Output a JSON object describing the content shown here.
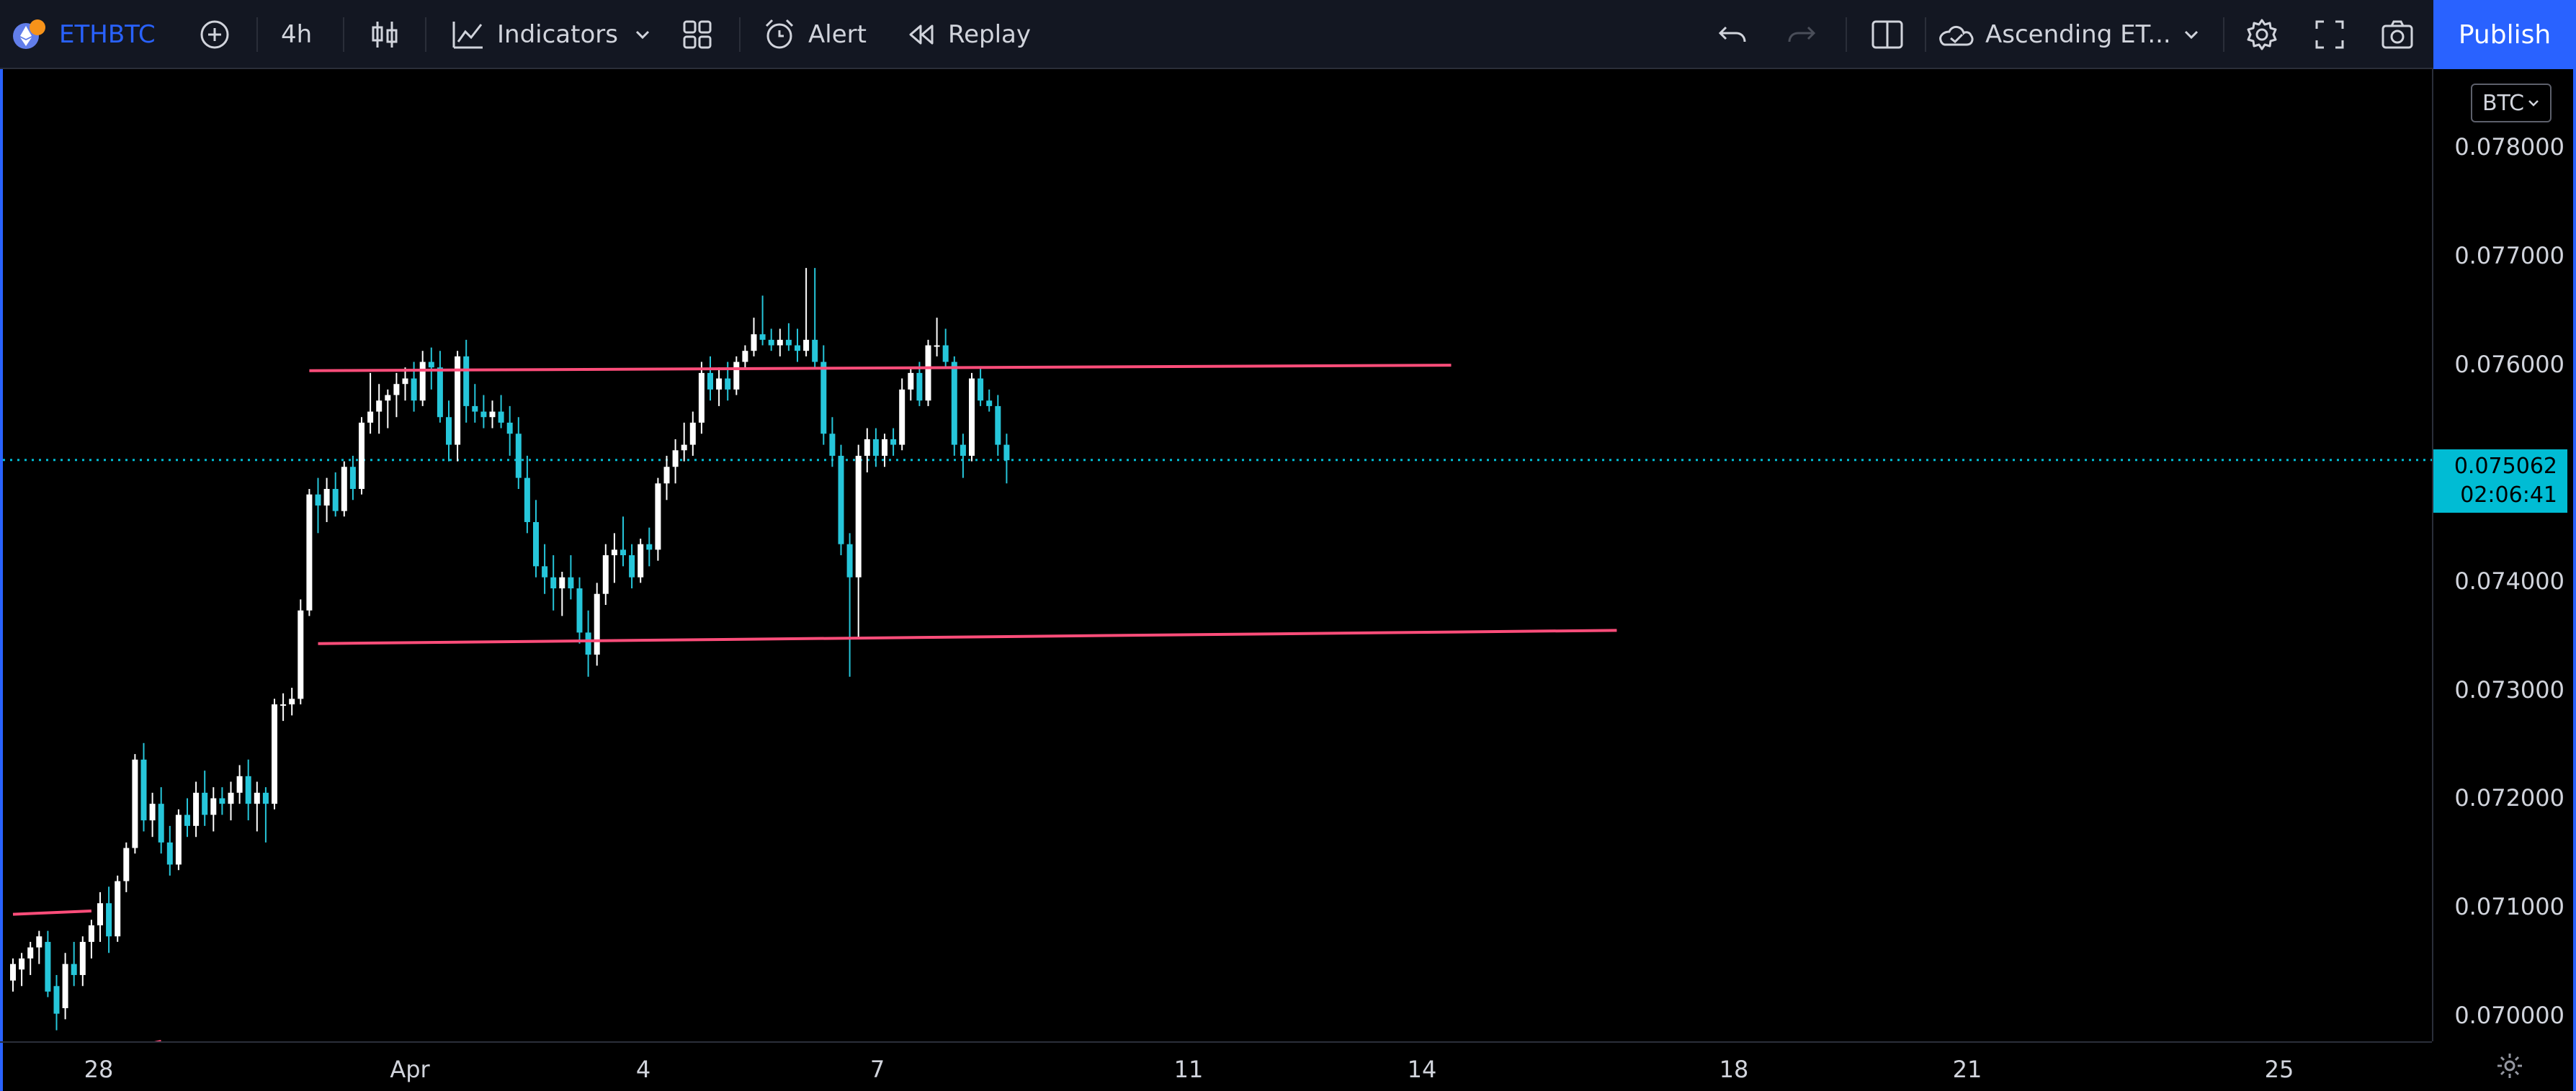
{
  "toolbar": {
    "symbol": "ETHBTC",
    "interval": "4h",
    "indicators_label": "Indicators",
    "alert_label": "Alert",
    "replay_label": "Replay",
    "layout_name": "Ascending ET...",
    "publish_label": "Publish"
  },
  "price_axis": {
    "currency": "BTC",
    "ticks": [
      "0.078000",
      "0.077000",
      "0.076000",
      "0.075062",
      "0.074000",
      "0.073000",
      "0.072000",
      "0.071000",
      "0.070000"
    ],
    "last_price": "0.075062",
    "countdown": "02:06:41"
  },
  "time_axis": {
    "labels": [
      "28",
      "Apr",
      "4",
      "7",
      "11",
      "14",
      "18",
      "21",
      "25"
    ]
  },
  "colors": {
    "up_candle": "#ffffff",
    "down_candle": "#26c6da",
    "trendline": "#ff4d7a",
    "last_price_line": "#00bcd4",
    "accent": "#2962ff"
  },
  "chart_data": {
    "type": "candlestick",
    "symbol": "ETHBTC",
    "interval": "4h",
    "y_range": [
      0.0698,
      0.0786
    ],
    "bars_ohlc": [
      [
        0.07035,
        0.07055,
        0.07025,
        0.0705
      ],
      [
        0.07045,
        0.0706,
        0.0703,
        0.07055
      ],
      [
        0.07055,
        0.0707,
        0.0704,
        0.07065
      ],
      [
        0.07065,
        0.0708,
        0.0705,
        0.07075
      ],
      [
        0.0707,
        0.0708,
        0.0702,
        0.07025
      ],
      [
        0.0703,
        0.0704,
        0.0699,
        0.07005
      ],
      [
        0.0701,
        0.0706,
        0.07,
        0.0705
      ],
      [
        0.0705,
        0.0707,
        0.0703,
        0.0704
      ],
      [
        0.0704,
        0.07075,
        0.0703,
        0.0707
      ],
      [
        0.0707,
        0.0709,
        0.07055,
        0.07085
      ],
      [
        0.07085,
        0.07115,
        0.0707,
        0.07105
      ],
      [
        0.07105,
        0.0712,
        0.0706,
        0.07075
      ],
      [
        0.07075,
        0.0713,
        0.0707,
        0.07125
      ],
      [
        0.07125,
        0.0716,
        0.07115,
        0.07155
      ],
      [
        0.07155,
        0.0724,
        0.0715,
        0.07235
      ],
      [
        0.07235,
        0.0725,
        0.0717,
        0.0718
      ],
      [
        0.0718,
        0.07205,
        0.07165,
        0.07195
      ],
      [
        0.07195,
        0.0721,
        0.0715,
        0.0716
      ],
      [
        0.0716,
        0.07175,
        0.0713,
        0.0714
      ],
      [
        0.0714,
        0.0719,
        0.07135,
        0.07185
      ],
      [
        0.07185,
        0.072,
        0.07165,
        0.07175
      ],
      [
        0.07175,
        0.07215,
        0.07165,
        0.07205
      ],
      [
        0.07205,
        0.07225,
        0.07175,
        0.07185
      ],
      [
        0.07185,
        0.0721,
        0.0717,
        0.072
      ],
      [
        0.072,
        0.0721,
        0.07185,
        0.07195
      ],
      [
        0.07195,
        0.07215,
        0.0718,
        0.07205
      ],
      [
        0.07205,
        0.0723,
        0.07195,
        0.0722
      ],
      [
        0.0722,
        0.07235,
        0.0718,
        0.07195
      ],
      [
        0.07195,
        0.07215,
        0.0717,
        0.07205
      ],
      [
        0.07205,
        0.0721,
        0.0716,
        0.07195
      ],
      [
        0.07195,
        0.0729,
        0.0719,
        0.07285
      ],
      [
        0.07285,
        0.07295,
        0.0727,
        0.07285
      ],
      [
        0.07285,
        0.073,
        0.07275,
        0.0729
      ],
      [
        0.0729,
        0.0738,
        0.07285,
        0.0737
      ],
      [
        0.0737,
        0.0748,
        0.07365,
        0.07475
      ],
      [
        0.07475,
        0.0749,
        0.0744,
        0.07465
      ],
      [
        0.07465,
        0.0749,
        0.0745,
        0.0748
      ],
      [
        0.0748,
        0.07495,
        0.07455,
        0.0746
      ],
      [
        0.0746,
        0.07505,
        0.07455,
        0.075
      ],
      [
        0.075,
        0.0751,
        0.0747,
        0.0748
      ],
      [
        0.0748,
        0.07545,
        0.07475,
        0.0754
      ],
      [
        0.0754,
        0.07585,
        0.0753,
        0.0755
      ],
      [
        0.0755,
        0.07575,
        0.0753,
        0.0756
      ],
      [
        0.0756,
        0.0757,
        0.07535,
        0.07565
      ],
      [
        0.07565,
        0.07585,
        0.07545,
        0.07575
      ],
      [
        0.07575,
        0.0759,
        0.0756,
        0.0758
      ],
      [
        0.0758,
        0.07595,
        0.0755,
        0.0756
      ],
      [
        0.0756,
        0.07605,
        0.07555,
        0.07595
      ],
      [
        0.07595,
        0.07608,
        0.0757,
        0.0759
      ],
      [
        0.0759,
        0.07605,
        0.0754,
        0.07545
      ],
      [
        0.07545,
        0.0756,
        0.07505,
        0.0752
      ],
      [
        0.0752,
        0.07605,
        0.07505,
        0.076
      ],
      [
        0.076,
        0.07615,
        0.0754,
        0.07555
      ],
      [
        0.07555,
        0.07575,
        0.0754,
        0.0755
      ],
      [
        0.0755,
        0.07565,
        0.07535,
        0.07545
      ],
      [
        0.07545,
        0.0756,
        0.07535,
        0.0755
      ],
      [
        0.0755,
        0.07565,
        0.07535,
        0.0754
      ],
      [
        0.0754,
        0.07555,
        0.0751,
        0.0753
      ],
      [
        0.0753,
        0.07545,
        0.0748,
        0.0749
      ],
      [
        0.0749,
        0.0751,
        0.0744,
        0.0745
      ],
      [
        0.0745,
        0.0747,
        0.074,
        0.0741
      ],
      [
        0.0741,
        0.0743,
        0.07385,
        0.074
      ],
      [
        0.074,
        0.0742,
        0.0737,
        0.0739
      ],
      [
        0.0739,
        0.07405,
        0.07365,
        0.074
      ],
      [
        0.074,
        0.0742,
        0.0738,
        0.0739
      ],
      [
        0.0739,
        0.074,
        0.0734,
        0.0735
      ],
      [
        0.0735,
        0.0737,
        0.0731,
        0.0733
      ],
      [
        0.0733,
        0.07395,
        0.0732,
        0.07385
      ],
      [
        0.07385,
        0.0743,
        0.07375,
        0.0742
      ],
      [
        0.0742,
        0.0744,
        0.07395,
        0.07425
      ],
      [
        0.07425,
        0.07455,
        0.0741,
        0.0742
      ],
      [
        0.0742,
        0.0743,
        0.0739,
        0.074
      ],
      [
        0.074,
        0.07435,
        0.07395,
        0.0743
      ],
      [
        0.0743,
        0.07445,
        0.0741,
        0.07425
      ],
      [
        0.07425,
        0.0749,
        0.07415,
        0.07485
      ],
      [
        0.07485,
        0.0751,
        0.0747,
        0.075
      ],
      [
        0.075,
        0.07525,
        0.07485,
        0.07515
      ],
      [
        0.07515,
        0.0754,
        0.07505,
        0.0752
      ],
      [
        0.0752,
        0.0755,
        0.0751,
        0.0754
      ],
      [
        0.0754,
        0.07595,
        0.0753,
        0.07585
      ],
      [
        0.07585,
        0.076,
        0.0756,
        0.0757
      ],
      [
        0.0757,
        0.0759,
        0.07555,
        0.0758
      ],
      [
        0.0758,
        0.07595,
        0.0756,
        0.0757
      ],
      [
        0.0757,
        0.076,
        0.07565,
        0.07595
      ],
      [
        0.07595,
        0.0761,
        0.0759,
        0.07605
      ],
      [
        0.07605,
        0.07635,
        0.076,
        0.0762
      ],
      [
        0.0762,
        0.07655,
        0.0761,
        0.07615
      ],
      [
        0.07615,
        0.07625,
        0.07605,
        0.0761
      ],
      [
        0.0761,
        0.07625,
        0.076,
        0.07615
      ],
      [
        0.07615,
        0.0763,
        0.07605,
        0.0761
      ],
      [
        0.0761,
        0.07625,
        0.07595,
        0.07605
      ],
      [
        0.07605,
        0.0768,
        0.076,
        0.07615
      ],
      [
        0.07615,
        0.0768,
        0.0759,
        0.07595
      ],
      [
        0.07595,
        0.0761,
        0.0752,
        0.0753
      ],
      [
        0.0753,
        0.07545,
        0.075,
        0.0751
      ],
      [
        0.0751,
        0.0752,
        0.0742,
        0.0743
      ],
      [
        0.0743,
        0.0744,
        0.0731,
        0.074
      ],
      [
        0.074,
        0.0752,
        0.07345,
        0.0751
      ],
      [
        0.0751,
        0.07535,
        0.07495,
        0.07525
      ],
      [
        0.07525,
        0.07535,
        0.075,
        0.0751
      ],
      [
        0.0751,
        0.0753,
        0.075,
        0.07525
      ],
      [
        0.07525,
        0.07535,
        0.0751,
        0.0752
      ],
      [
        0.0752,
        0.0758,
        0.07515,
        0.0757
      ],
      [
        0.0757,
        0.0759,
        0.0756,
        0.07585
      ],
      [
        0.07585,
        0.07595,
        0.07555,
        0.0756
      ],
      [
        0.0756,
        0.07615,
        0.07555,
        0.0761
      ],
      [
        0.0761,
        0.07635,
        0.076,
        0.0761
      ],
      [
        0.0761,
        0.07625,
        0.0759,
        0.07595
      ],
      [
        0.07595,
        0.076,
        0.0751,
        0.0752
      ],
      [
        0.0752,
        0.0753,
        0.0749,
        0.0751
      ],
      [
        0.0751,
        0.07585,
        0.07505,
        0.0758
      ],
      [
        0.0758,
        0.0759,
        0.07555,
        0.0756
      ],
      [
        0.0756,
        0.0757,
        0.0755,
        0.07555
      ],
      [
        0.07555,
        0.07565,
        0.0751,
        0.0752
      ],
      [
        0.0752,
        0.0753,
        0.07485,
        0.07506
      ]
    ],
    "trendlines": [
      {
        "from_bar": 0,
        "from_price": 0.07095,
        "to_bar": 9,
        "to_price": 0.07098
      },
      {
        "from_bar": 34,
        "from_price": 0.07587,
        "to_bar": 165,
        "to_price": 0.07592
      },
      {
        "from_bar": 35,
        "from_price": 0.0734,
        "to_bar": 184,
        "to_price": 0.07352
      },
      {
        "from_bar": 14,
        "from_price": 0.06975,
        "to_bar": 17,
        "to_price": 0.0698
      }
    ],
    "last_price": 0.075062
  }
}
